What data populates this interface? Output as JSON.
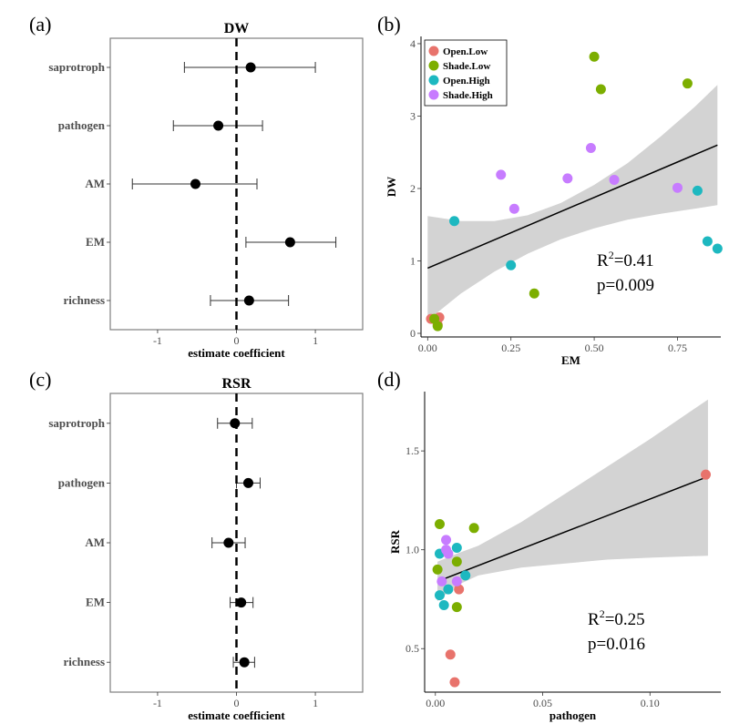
{
  "panels": {
    "a": "(a)",
    "b": "(b)",
    "c": "(c)",
    "d": "(d)"
  },
  "colors": {
    "Open.Low": "#E8736C",
    "Shade.Low": "#7CAE00",
    "Open.High": "#1DB8C0",
    "Shade.High": "#C77CFF",
    "ci_band": "#D3D3D3"
  },
  "chart_data": [
    {
      "id": "a",
      "type": "forest",
      "title": "DW",
      "xlabel": "estimate coefficient",
      "xlim": [
        -1.6,
        1.6
      ],
      "xticks": [
        -1,
        0,
        1
      ],
      "categories": [
        "saprotroph",
        "pathogen",
        "AM",
        "EM",
        "richness"
      ],
      "estimate": [
        0.18,
        -0.23,
        -0.52,
        0.68,
        0.16
      ],
      "lower": [
        -0.66,
        -0.8,
        -1.32,
        0.12,
        -0.33
      ],
      "upper": [
        1.0,
        0.33,
        0.26,
        1.26,
        0.66
      ],
      "reference_line": 0
    },
    {
      "id": "b",
      "type": "scatter",
      "xlabel": "EM",
      "ylabel": "DW",
      "xlim": [
        -0.02,
        0.88
      ],
      "ylim": [
        -0.05,
        4.1
      ],
      "xticks": [
        0,
        0.25,
        0.5,
        0.75
      ],
      "xtick_labels": [
        "0.00",
        "0.25",
        "0.50",
        "0.75"
      ],
      "yticks": [
        0,
        1,
        2,
        3,
        4
      ],
      "legend": [
        "Open.Low",
        "Shade.Low",
        "Open.High",
        "Shade.High"
      ],
      "legend_position": "top-left",
      "series": [
        {
          "name": "Open.Low",
          "points": [
            [
              0.01,
              0.2
            ],
            [
              0.035,
              0.22
            ],
            [
              0.03,
              0.12
            ]
          ]
        },
        {
          "name": "Shade.Low",
          "points": [
            [
              0.02,
              0.2
            ],
            [
              0.03,
              0.1
            ],
            [
              0.32,
              0.55
            ],
            [
              0.5,
              3.82
            ],
            [
              0.52,
              3.37
            ],
            [
              0.78,
              3.45
            ]
          ]
        },
        {
          "name": "Open.High",
          "points": [
            [
              0.08,
              1.55
            ],
            [
              0.25,
              0.94
            ],
            [
              0.81,
              1.97
            ],
            [
              0.84,
              1.27
            ],
            [
              0.87,
              1.17
            ]
          ]
        },
        {
          "name": "Shade.High",
          "points": [
            [
              0.22,
              2.19
            ],
            [
              0.26,
              1.72
            ],
            [
              0.42,
              2.14
            ],
            [
              0.49,
              2.56
            ],
            [
              0.56,
              2.12
            ],
            [
              0.75,
              2.01
            ]
          ]
        }
      ],
      "fit": {
        "x": [
          0.0,
          0.87
        ],
        "y": [
          0.9,
          2.6
        ]
      },
      "ci": {
        "x": [
          0.0,
          0.1,
          0.2,
          0.3,
          0.4,
          0.5,
          0.6,
          0.7,
          0.8,
          0.87
        ],
        "lower": [
          0.18,
          0.55,
          0.85,
          1.1,
          1.3,
          1.45,
          1.57,
          1.65,
          1.72,
          1.77
        ],
        "upper": [
          1.62,
          1.55,
          1.55,
          1.63,
          1.8,
          2.05,
          2.35,
          2.72,
          3.12,
          3.43
        ]
      },
      "annotation": {
        "r_prefix": "R",
        "r_sup": "2",
        "r_value": "=0.41",
        "p_text": "p=0.009"
      }
    },
    {
      "id": "c",
      "type": "forest",
      "title": "RSR",
      "xlabel": "estimate coefficient",
      "xlim": [
        -1.6,
        1.6
      ],
      "xticks": [
        -1,
        0,
        1
      ],
      "categories": [
        "saprotroph",
        "pathogen",
        "AM",
        "EM",
        "richness"
      ],
      "estimate": [
        -0.02,
        0.15,
        -0.1,
        0.06,
        0.1
      ],
      "lower": [
        -0.24,
        0.0,
        -0.31,
        -0.08,
        -0.04
      ],
      "upper": [
        0.2,
        0.3,
        0.11,
        0.21,
        0.23
      ],
      "reference_line": 0
    },
    {
      "id": "d",
      "type": "scatter",
      "xlabel": "pathogen",
      "ylabel": "RSR",
      "xlim": [
        -0.005,
        0.133
      ],
      "ylim": [
        0.28,
        1.8
      ],
      "xticks": [
        0,
        0.05,
        0.1
      ],
      "xtick_labels": [
        "0.00",
        "0.05",
        "0.10"
      ],
      "yticks": [
        0.5,
        1.0,
        1.5
      ],
      "ytick_labels": [
        "0.5",
        "1.0",
        "1.5"
      ],
      "series": [
        {
          "name": "Open.Low",
          "points": [
            [
              0.007,
              0.47
            ],
            [
              0.009,
              0.33
            ],
            [
              0.011,
              0.8
            ],
            [
              0.126,
              1.38
            ]
          ]
        },
        {
          "name": "Shade.Low",
          "points": [
            [
              0.002,
              1.13
            ],
            [
              0.018,
              1.11
            ],
            [
              0.001,
              0.9
            ],
            [
              0.01,
              0.94
            ],
            [
              0.01,
              0.71
            ]
          ]
        },
        {
          "name": "Open.High",
          "points": [
            [
              0.002,
              0.98
            ],
            [
              0.01,
              1.01
            ],
            [
              0.014,
              0.87
            ],
            [
              0.002,
              0.77
            ],
            [
              0.004,
              0.72
            ],
            [
              0.006,
              0.8
            ]
          ]
        },
        {
          "name": "Shade.High",
          "points": [
            [
              0.005,
              1.05
            ],
            [
              0.005,
              1.0
            ],
            [
              0.006,
              0.98
            ],
            [
              0.003,
              0.84
            ],
            [
              0.01,
              0.84
            ]
          ]
        }
      ],
      "fit": {
        "x": [
          0.001,
          0.127
        ],
        "y": [
          0.84,
          1.37
        ]
      },
      "ci": {
        "x": [
          0.001,
          0.01,
          0.02,
          0.04,
          0.06,
          0.08,
          0.1,
          0.127
        ],
        "lower": [
          0.74,
          0.82,
          0.87,
          0.91,
          0.93,
          0.95,
          0.96,
          0.97
        ],
        "upper": [
          0.94,
          0.98,
          1.02,
          1.14,
          1.28,
          1.42,
          1.56,
          1.76
        ]
      },
      "annotation": {
        "r_prefix": "R",
        "r_sup": "2",
        "r_value": "=0.25",
        "p_text": "p=0.016"
      }
    }
  ]
}
